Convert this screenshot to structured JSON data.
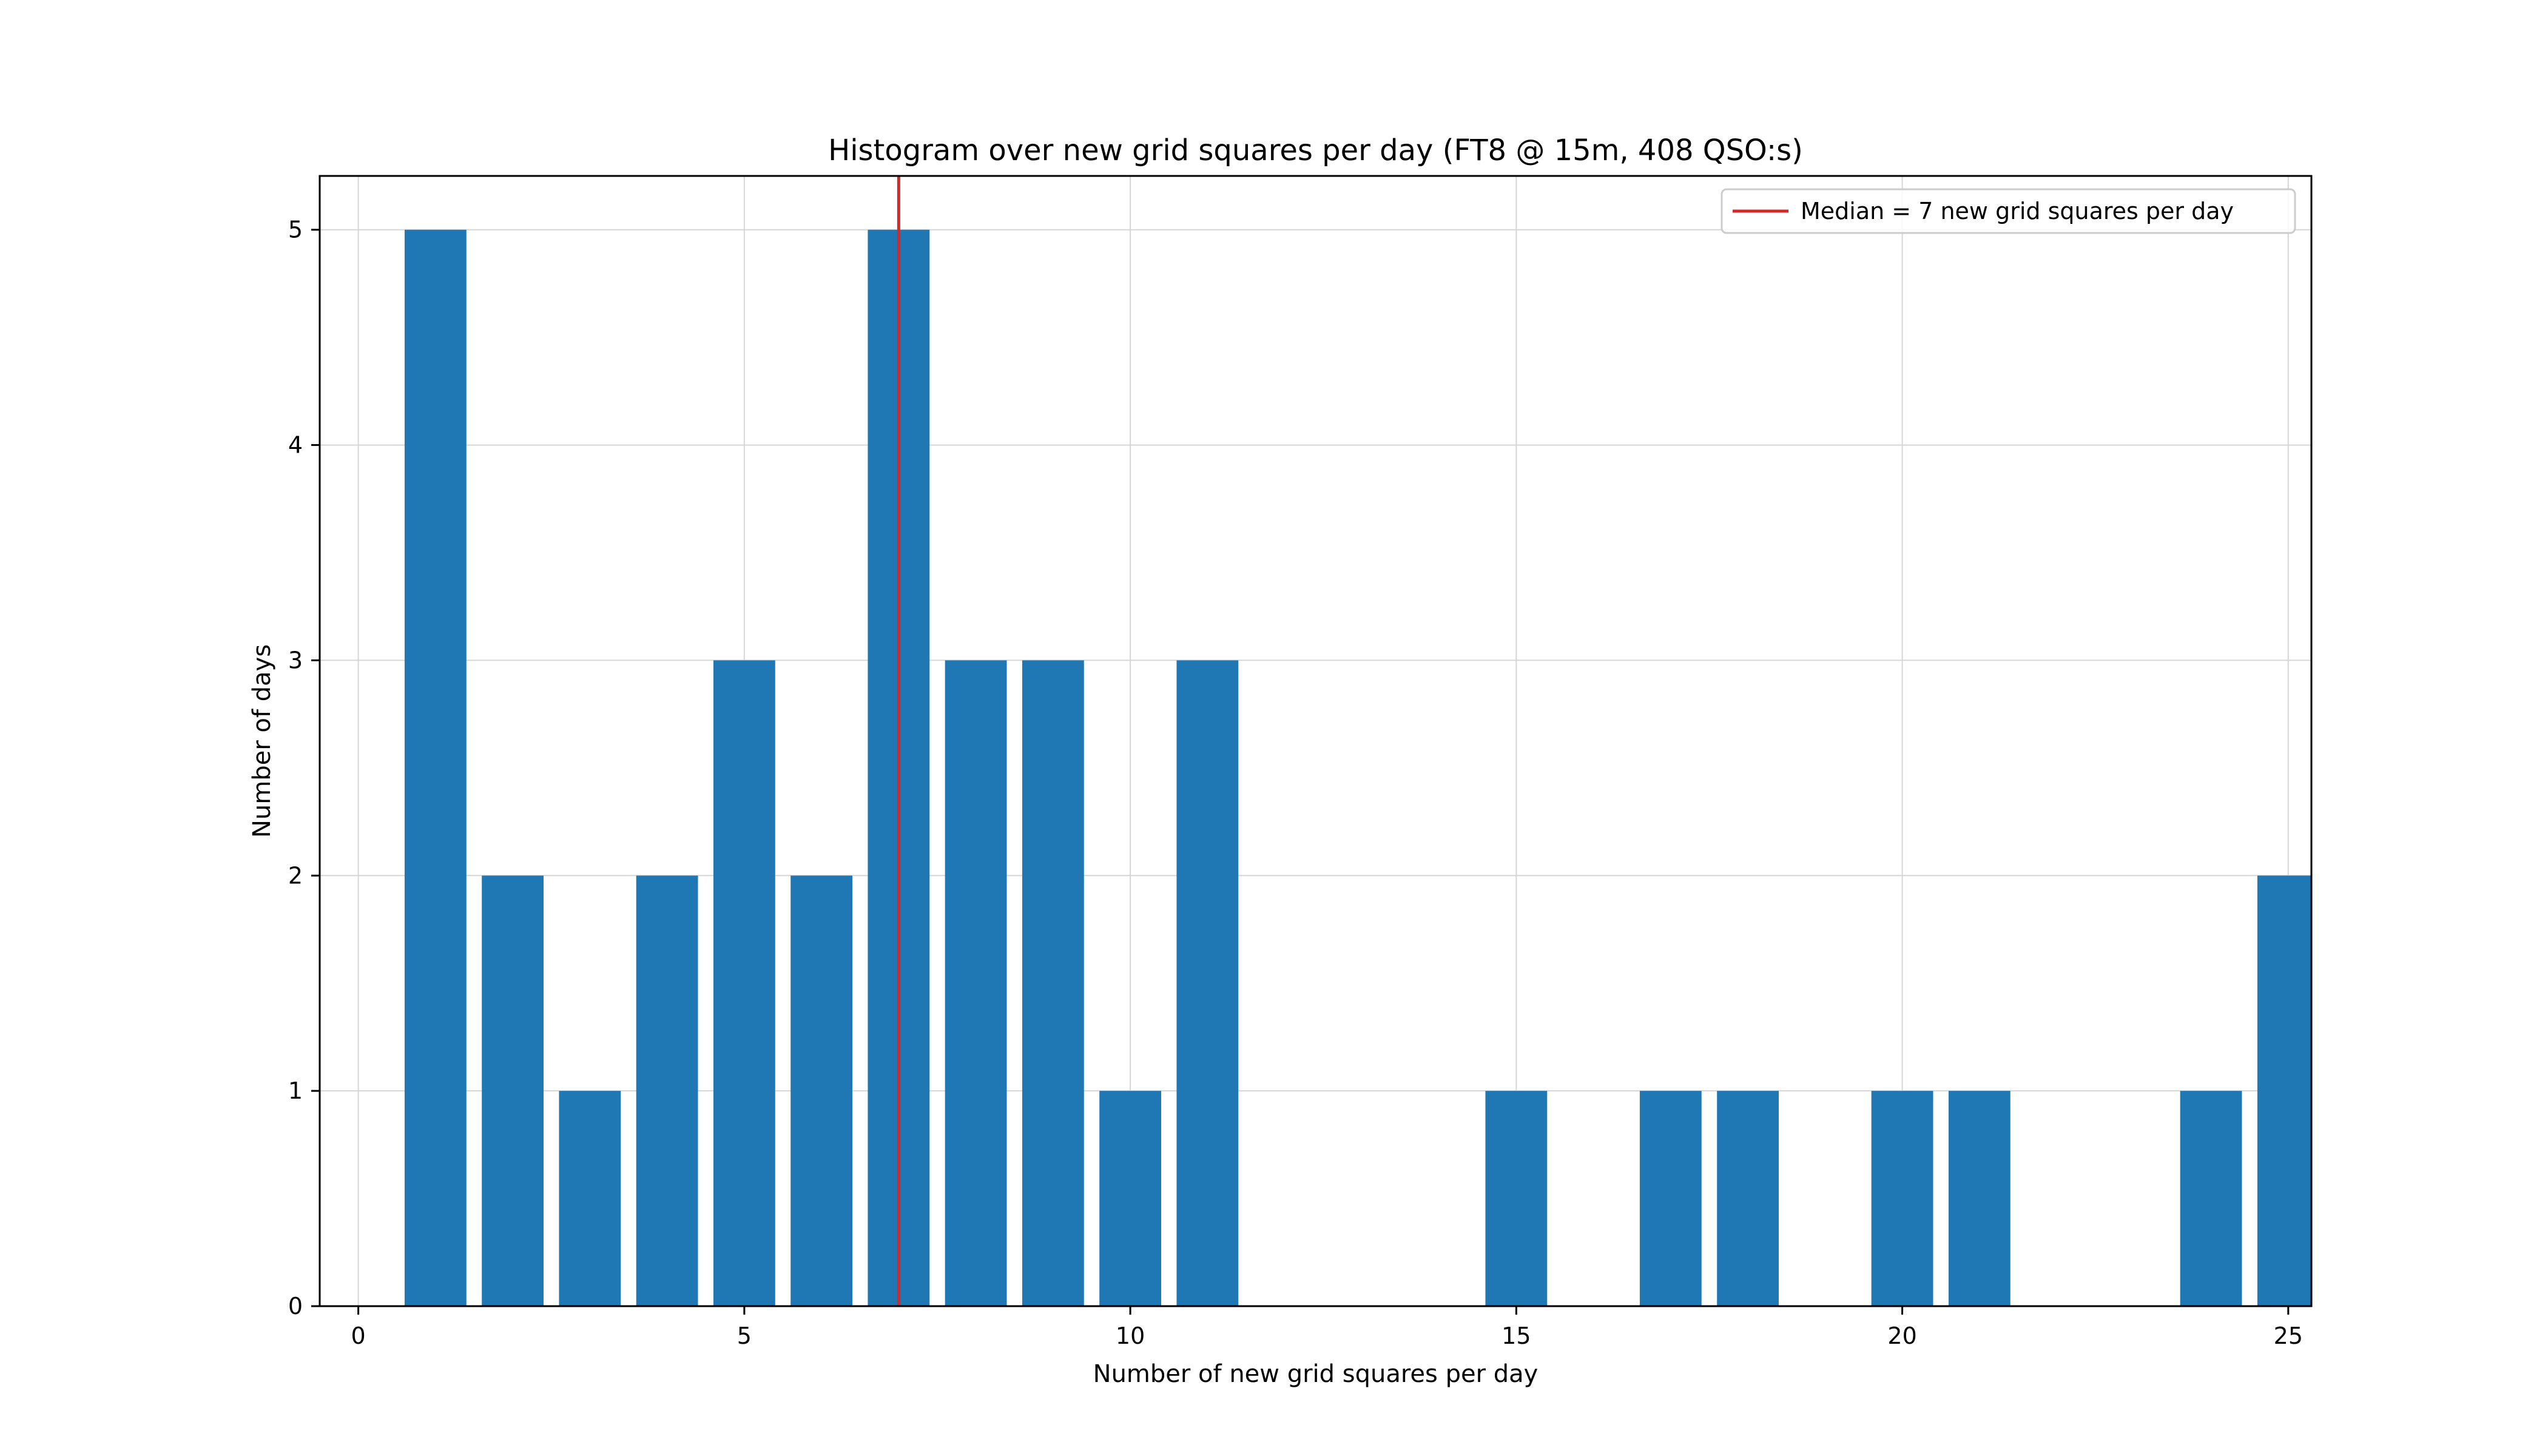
{
  "chart_data": {
    "type": "bar",
    "title": "Histogram over new grid squares per day (FT8 @ 15m, 408 QSO:s)",
    "xlabel": "Number of new grid squares per day",
    "ylabel": "Number of days",
    "xlim": [
      -0.5,
      25.3
    ],
    "ylim": [
      0,
      5.25
    ],
    "xticks": [
      0,
      5,
      10,
      15,
      20,
      25
    ],
    "yticks": [
      0,
      1,
      2,
      3,
      4,
      5
    ],
    "grid": true,
    "bar_color": "#1f77b4",
    "bar_width": 0.8,
    "x": [
      1,
      2,
      3,
      4,
      5,
      6,
      7,
      8,
      9,
      10,
      11,
      15,
      17,
      18,
      20,
      21,
      24,
      25
    ],
    "values": [
      5,
      2,
      1,
      2,
      3,
      2,
      5,
      3,
      3,
      1,
      3,
      1,
      1,
      1,
      1,
      1,
      1,
      2
    ],
    "median_line": {
      "x": 7,
      "color": "#d62728",
      "label": "Median = 7 new grid squares per day"
    },
    "legend_position": "top-right"
  }
}
